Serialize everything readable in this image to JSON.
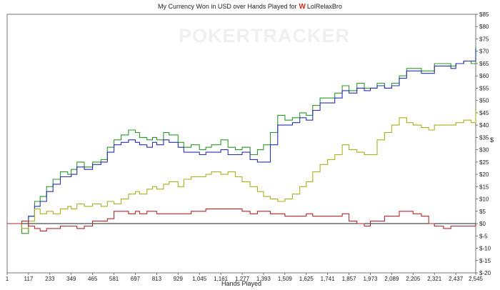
{
  "chart_data": {
    "type": "line",
    "title_prefix": "My Currency Won in USD over Hands Played for",
    "title_player": "LolRelaxBro",
    "title_icon": "w-logo-icon",
    "watermark": "POKERTRACKER",
    "xlabel": "Hands Played",
    "ylabel": "$",
    "xlim": [
      1,
      2545
    ],
    "ylim": [
      -20,
      85
    ],
    "x_ticks": [
      1,
      117,
      233,
      349,
      465,
      581,
      697,
      813,
      929,
      1045,
      1161,
      1277,
      1393,
      1509,
      1625,
      1741,
      1857,
      1973,
      2089,
      2205,
      2321,
      2437,
      2545
    ],
    "x_tick_labels": [
      "1",
      "117",
      "233",
      "349",
      "465",
      "581",
      "697",
      "813",
      "929",
      "1,045",
      "1,161",
      "1,277",
      "1,393",
      "1,509",
      "1,625",
      "1,741",
      "1,857",
      "1,973",
      "2,089",
      "2,205",
      "2,321",
      "2,437",
      "2,545"
    ],
    "y_ticks": [
      -20,
      -15,
      -10,
      -5,
      0,
      5,
      10,
      15,
      20,
      25,
      30,
      35,
      40,
      45,
      50,
      55,
      60,
      65,
      70,
      75,
      80,
      85
    ],
    "y_tick_labels": [
      "$-20",
      "$-15",
      "$-10",
      "$-5",
      "$0",
      "$5",
      "$10",
      "$15",
      "$20",
      "$25",
      "$30",
      "$35",
      "$40",
      "$45",
      "$50",
      "$55",
      "$60",
      "$65",
      "$70",
      "$75",
      "$80",
      "$85"
    ],
    "grid": false,
    "zero_line": true,
    "series": [
      {
        "color": "#2a9a2a",
        "x": [
          1,
          40,
          80,
          117,
          150,
          180,
          215,
          250,
          290,
          330,
          349,
          380,
          420,
          465,
          510,
          545,
          581,
          620,
          660,
          697,
          720,
          760,
          790,
          813,
          850,
          880,
          929,
          960,
          1000,
          1045,
          1080,
          1110,
          1161,
          1200,
          1240,
          1277,
          1320,
          1360,
          1393,
          1430,
          1470,
          1509,
          1550,
          1590,
          1625,
          1660,
          1700,
          1741,
          1780,
          1820,
          1857,
          1900,
          1940,
          1973,
          2010,
          2050,
          2089,
          2130,
          2170,
          2205,
          2250,
          2290,
          2321,
          2370,
          2410,
          2437,
          2480,
          2520,
          2545
        ],
        "values": [
          0,
          0,
          -4,
          3,
          9,
          11,
          15,
          18,
          21,
          20,
          22,
          25,
          23,
          25,
          26,
          31,
          34,
          36,
          38,
          37,
          35,
          34,
          35,
          34,
          37,
          36,
          33,
          31,
          32,
          30,
          31,
          32,
          34,
          31,
          30,
          31,
          28,
          30,
          32,
          37,
          44,
          42,
          43,
          45,
          44,
          48,
          51,
          51,
          53,
          56,
          54,
          57,
          55,
          55,
          57,
          55,
          57,
          60,
          63,
          63,
          62,
          62,
          65,
          65,
          64,
          65,
          66,
          65,
          72
        ]
      },
      {
        "color": "#2a2fb4",
        "x": [
          1,
          40,
          80,
          117,
          150,
          180,
          215,
          250,
          290,
          330,
          349,
          380,
          420,
          465,
          510,
          545,
          581,
          620,
          660,
          697,
          720,
          760,
          790,
          813,
          850,
          880,
          929,
          960,
          1000,
          1045,
          1080,
          1110,
          1161,
          1200,
          1240,
          1277,
          1320,
          1360,
          1393,
          1430,
          1470,
          1509,
          1550,
          1590,
          1625,
          1660,
          1700,
          1741,
          1780,
          1820,
          1857,
          1900,
          1940,
          1973,
          2010,
          2050,
          2089,
          2130,
          2170,
          2205,
          2250,
          2290,
          2321,
          2370,
          2410,
          2437,
          2480,
          2520,
          2545
        ],
        "values": [
          0,
          0,
          -2,
          3,
          7,
          9,
          13,
          16,
          19,
          19,
          20,
          23,
          22,
          24,
          25,
          29,
          32,
          33,
          34,
          33,
          32,
          31,
          33,
          32,
          34,
          33,
          31,
          29,
          29,
          28,
          29,
          29,
          30,
          28,
          28,
          29,
          26,
          25,
          25,
          32,
          40,
          40,
          41,
          43,
          42,
          46,
          49,
          49,
          51,
          54,
          53,
          55,
          54,
          55,
          56,
          55,
          56,
          59,
          62,
          62,
          61,
          61,
          64,
          64,
          63,
          65,
          66,
          66,
          71
        ]
      },
      {
        "color": "#a8b21e",
        "x": [
          1,
          40,
          80,
          117,
          150,
          180,
          215,
          250,
          290,
          330,
          349,
          380,
          420,
          465,
          510,
          545,
          581,
          620,
          660,
          697,
          720,
          760,
          790,
          813,
          850,
          880,
          929,
          960,
          1000,
          1045,
          1080,
          1110,
          1161,
          1200,
          1240,
          1277,
          1320,
          1360,
          1393,
          1430,
          1470,
          1509,
          1550,
          1590,
          1625,
          1660,
          1700,
          1741,
          1780,
          1820,
          1857,
          1900,
          1940,
          1973,
          2010,
          2050,
          2089,
          2130,
          2170,
          2205,
          2250,
          2290,
          2321,
          2370,
          2410,
          2437,
          2480,
          2520,
          2545
        ],
        "values": [
          0,
          0,
          -2,
          1,
          6,
          4,
          5,
          4,
          6,
          7,
          6,
          8,
          7,
          8,
          7,
          9,
          8,
          10,
          12,
          13,
          12,
          14,
          15,
          14,
          16,
          17,
          15,
          18,
          19,
          19,
          20,
          21,
          20,
          21,
          19,
          17,
          15,
          13,
          11,
          10,
          9,
          10,
          12,
          15,
          17,
          21,
          24,
          26,
          28,
          32,
          30,
          29,
          28,
          28,
          34,
          37,
          40,
          43,
          41,
          40,
          39,
          38,
          40,
          40,
          40,
          41,
          42,
          41,
          46
        ]
      },
      {
        "color": "#b8242a",
        "x": [
          1,
          40,
          80,
          117,
          150,
          180,
          215,
          250,
          290,
          330,
          349,
          380,
          420,
          465,
          510,
          545,
          581,
          620,
          660,
          697,
          720,
          760,
          790,
          813,
          850,
          880,
          929,
          960,
          1000,
          1045,
          1080,
          1110,
          1161,
          1200,
          1240,
          1277,
          1320,
          1360,
          1393,
          1430,
          1470,
          1509,
          1550,
          1590,
          1625,
          1660,
          1700,
          1741,
          1780,
          1820,
          1857,
          1900,
          1940,
          1973,
          2010,
          2050,
          2089,
          2130,
          2170,
          2205,
          2250,
          2290,
          2321,
          2370,
          2410,
          2437,
          2480,
          2520,
          2545
        ],
        "values": [
          0,
          0,
          1,
          -1,
          -2,
          -3,
          -2,
          -2,
          -1,
          -1,
          -1,
          -2,
          -1,
          1,
          1,
          2,
          5,
          5,
          4,
          5,
          4,
          5,
          5,
          4,
          4,
          4,
          4,
          4,
          5,
          5,
          6,
          6,
          6,
          6,
          6,
          5,
          4,
          5,
          5,
          4,
          4,
          3,
          3,
          3,
          4,
          3,
          3,
          3,
          3,
          4,
          1,
          0,
          -1,
          1,
          1,
          3,
          3,
          5,
          5,
          4,
          3,
          0,
          -1,
          -2,
          -1,
          -1,
          -1,
          -1,
          0
        ]
      }
    ]
  }
}
